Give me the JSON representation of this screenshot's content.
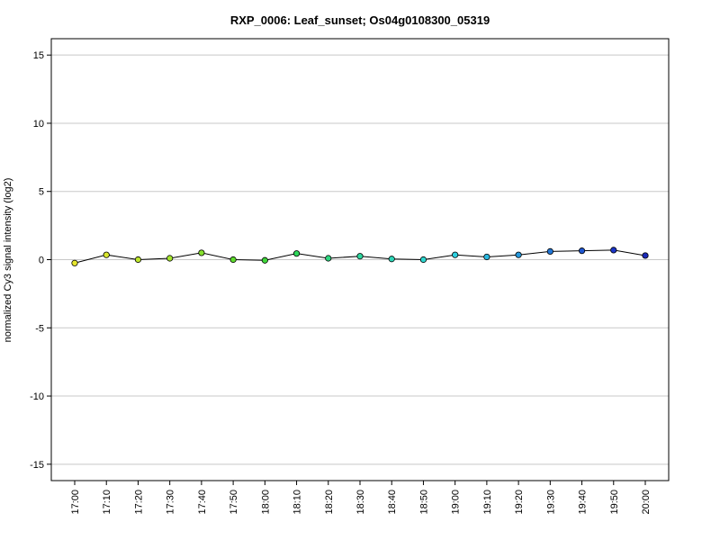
{
  "chart_data": {
    "type": "line",
    "title": "RXP_0006: Leaf_sunset; Os04g0108300_05319",
    "xlabel": "",
    "ylabel": "normalized Cy3 signal intensity (log2)",
    "ylim": [
      -16.2,
      16.2
    ],
    "yticks": [
      15,
      10,
      5,
      0,
      -5,
      -10,
      -15
    ],
    "ytick_labels": [
      "15",
      "10",
      "5",
      "0",
      "-5",
      "-10",
      "-15"
    ],
    "grid": true,
    "legend": "none",
    "categories": [
      "17:00",
      "17:10",
      "17:20",
      "17:30",
      "17:40",
      "17:50",
      "18:00",
      "18:10",
      "18:20",
      "18:30",
      "18:40",
      "18:50",
      "19:00",
      "19:10",
      "19:20",
      "19:30",
      "19:40",
      "19:50",
      "20:00"
    ],
    "series": [
      {
        "values": [
          -0.25,
          0.35,
          0.0,
          0.1,
          0.5,
          0.0,
          -0.05,
          0.45,
          0.1,
          0.25,
          0.05,
          0.0,
          0.35,
          0.2,
          0.35,
          0.6,
          0.65,
          0.7,
          0.3
        ],
        "point_colors": [
          "#e6e62e",
          "#d9e62e",
          "#bde62e",
          "#a5e62e",
          "#86e02e",
          "#5fdc2e",
          "#3fd63a",
          "#2ed65a",
          "#2ed680",
          "#2ed69e",
          "#2ed6b8",
          "#2ed6cf",
          "#2ed0e0",
          "#2ab8e0",
          "#2698dc",
          "#2276d6",
          "#1e56d0",
          "#1a34c8",
          "#1a2ab8"
        ]
      }
    ]
  }
}
